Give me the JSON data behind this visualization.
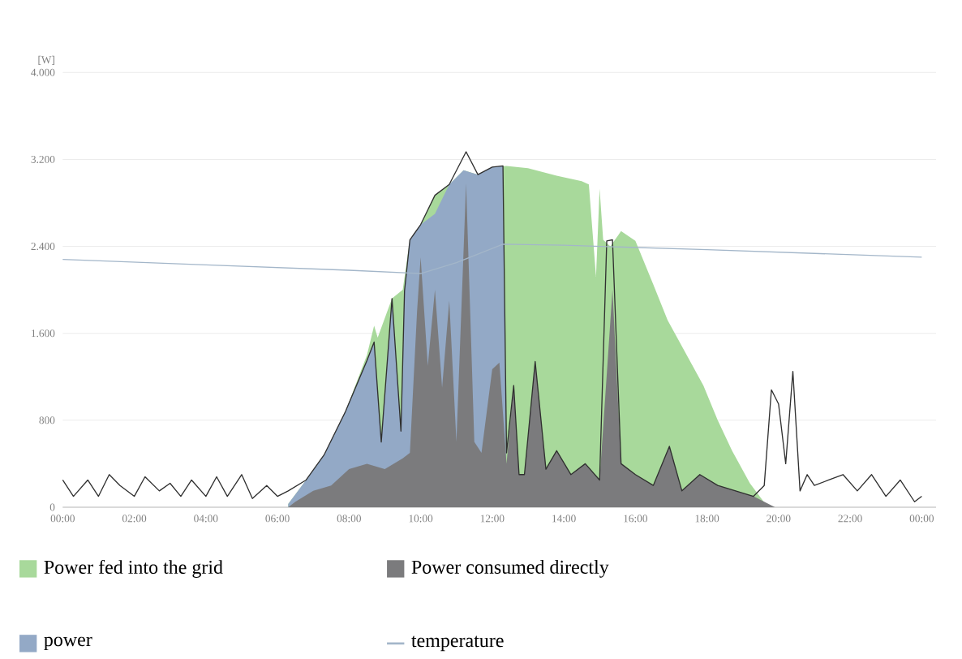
{
  "chart_data": {
    "type": "area",
    "ylabel": "[W]",
    "xlim": [
      0,
      24.4
    ],
    "ylim": [
      0,
      4000
    ],
    "xticks": [
      {
        "value": 0,
        "label": "00:00"
      },
      {
        "value": 2,
        "label": "02:00"
      },
      {
        "value": 4,
        "label": "04:00"
      },
      {
        "value": 6,
        "label": "06:00"
      },
      {
        "value": 8,
        "label": "08:00"
      },
      {
        "value": 10,
        "label": "10:00"
      },
      {
        "value": 12,
        "label": "12:00"
      },
      {
        "value": 14,
        "label": "14:00"
      },
      {
        "value": 16,
        "label": "16:00"
      },
      {
        "value": 18,
        "label": "18:00"
      },
      {
        "value": 20,
        "label": "20:00"
      },
      {
        "value": 22,
        "label": "22:00"
      },
      {
        "value": 24,
        "label": "00:00"
      }
    ],
    "yticks": [
      0,
      800,
      {
        "value": 1600,
        "label": "1.600"
      },
      {
        "value": 2400,
        "label": "2.400"
      },
      {
        "value": 3200,
        "label": "3.200"
      },
      {
        "value": 4000,
        "label": "4.000"
      }
    ],
    "grid": "y",
    "legend": "bottom",
    "series": [
      {
        "name": "Power fed into the grid",
        "color": "#a8d99b",
        "x": [
          6.3,
          6.8,
          7.3,
          7.9,
          8.5,
          8.7,
          8.8,
          9.2,
          9.5,
          9.7,
          10.0,
          10.4,
          10.8,
          11.2,
          11.6,
          12.0,
          12.4,
          13.0,
          13.8,
          14.5,
          14.7,
          14.9,
          15.0,
          15.1,
          15.3,
          15.6,
          16.0,
          16.5,
          16.9,
          17.4,
          17.9,
          18.3,
          18.7,
          19.2,
          19.7
        ],
        "values": [
          30,
          250,
          480,
          880,
          1400,
          1670,
          1560,
          1920,
          2000,
          2460,
          2600,
          2870,
          2970,
          3100,
          3060,
          3130,
          3140,
          3120,
          3050,
          3000,
          2970,
          2120,
          2930,
          2460,
          2400,
          2540,
          2450,
          2050,
          1720,
          1420,
          1120,
          800,
          520,
          220,
          0
        ]
      },
      {
        "name": "power",
        "color": "#93a9c6",
        "x": [
          6.3,
          6.8,
          7.3,
          7.9,
          8.5,
          8.7,
          8.9,
          9.2,
          9.45,
          9.55,
          9.7,
          10.0,
          10.4,
          10.8,
          11.2,
          11.6,
          12.0,
          12.3,
          12.4
        ],
        "values": [
          30,
          250,
          480,
          880,
          1350,
          1520,
          600,
          1920,
          700,
          1990,
          2460,
          2600,
          2700,
          2970,
          3100,
          3060,
          3130,
          3140,
          0
        ]
      },
      {
        "name": "Power consumed directly",
        "color": "#7b7b7d",
        "x": [
          6.3,
          6.5,
          7.0,
          7.5,
          8.0,
          8.5,
          9.0,
          9.5,
          9.7,
          9.9,
          10.0,
          10.2,
          10.4,
          10.6,
          10.8,
          11.0,
          11.27,
          11.5,
          11.7,
          12.0,
          12.2,
          12.4,
          12.6,
          12.75,
          12.9,
          13.2,
          13.5,
          13.8,
          14.2,
          14.6,
          15.0,
          15.36,
          15.6,
          16.0,
          16.5,
          16.95,
          17.3,
          17.8,
          18.3,
          18.8,
          19.3,
          19.9
        ],
        "values": [
          0,
          50,
          150,
          200,
          350,
          400,
          350,
          450,
          500,
          1800,
          2300,
          1300,
          2000,
          1100,
          1900,
          600,
          2980,
          600,
          500,
          1270,
          1330,
          400,
          1120,
          300,
          300,
          1340,
          350,
          520,
          300,
          400,
          250,
          2000,
          400,
          300,
          200,
          560,
          150,
          300,
          200,
          150,
          100,
          0
        ]
      },
      {
        "type": "line",
        "color": "#303030",
        "x": [
          0,
          0.3,
          0.7,
          1.0,
          1.3,
          1.6,
          2.0,
          2.3,
          2.7,
          3.0,
          3.3,
          3.6,
          4.0,
          4.3,
          4.6,
          5.0,
          5.3,
          5.7,
          6.0,
          6.3,
          6.8,
          7.3,
          7.9,
          8.5,
          8.7,
          8.9,
          9.2,
          9.45,
          9.55,
          9.7,
          10.0,
          10.4,
          10.8,
          11.27,
          11.6,
          12.0,
          12.3,
          12.4,
          12.6,
          12.75,
          12.9,
          13.2,
          13.5,
          13.8,
          14.2,
          14.6,
          15.0,
          15.2,
          15.36,
          15.6,
          16.0,
          16.5,
          16.95,
          17.3,
          17.8,
          18.3,
          18.8,
          19.3,
          19.6,
          19.8,
          20.0,
          20.2,
          20.4,
          20.6,
          20.8,
          21.0,
          21.4,
          21.8,
          22.2,
          22.6,
          23.0,
          23.4,
          23.8,
          24.0
        ],
        "values": [
          250,
          100,
          250,
          100,
          300,
          200,
          100,
          280,
          150,
          220,
          100,
          250,
          100,
          280,
          100,
          300,
          80,
          200,
          100,
          150,
          250,
          480,
          880,
          1350,
          1520,
          600,
          1920,
          700,
          1990,
          2460,
          2600,
          2870,
          2970,
          3270,
          3060,
          3130,
          3140,
          500,
          1120,
          300,
          300,
          1340,
          350,
          520,
          300,
          400,
          250,
          2450,
          2460,
          400,
          300,
          200,
          560,
          150,
          300,
          200,
          150,
          100,
          200,
          1080,
          950,
          400,
          1250,
          150,
          300,
          200,
          250,
          300,
          150,
          300,
          100,
          250,
          50,
          100
        ]
      },
      {
        "name": "temperature",
        "type": "line",
        "color": "#a3b6c9",
        "x": [
          0,
          4,
          8,
          10,
          11,
          12,
          12.3,
          14,
          18,
          24
        ],
        "values": [
          2280,
          2230,
          2180,
          2150,
          2250,
          2380,
          2420,
          2410,
          2370,
          2300
        ]
      }
    ]
  }
}
